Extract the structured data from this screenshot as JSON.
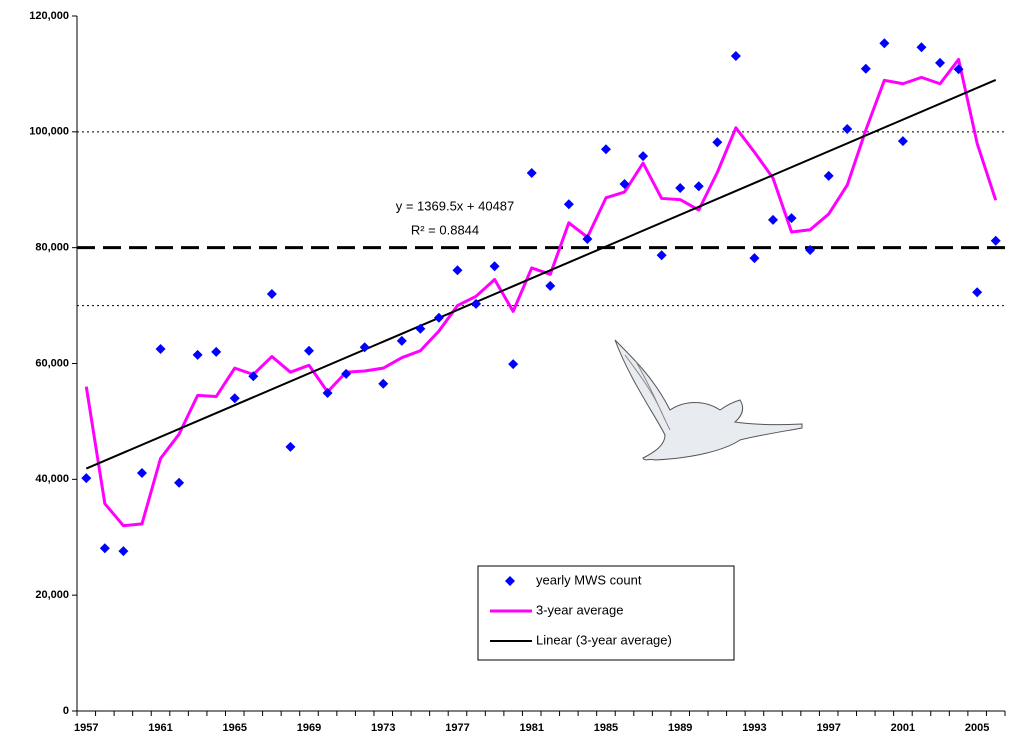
{
  "chart_data": {
    "type": "scatter-line",
    "categories": [
      "1957",
      null,
      null,
      null,
      "1961",
      null,
      null,
      null,
      "1965",
      null,
      null,
      null,
      "1969",
      null,
      null,
      null,
      "1973",
      null,
      null,
      null,
      "1977",
      null,
      null,
      null,
      "1981",
      null,
      null,
      null,
      "1985",
      null,
      null,
      null,
      "1989",
      null,
      null,
      null,
      "1993",
      null,
      null,
      null,
      "1997",
      null,
      null,
      null,
      "2001",
      null,
      null,
      null,
      "2005",
      null
    ],
    "series": [
      {
        "name": "yearly MWS count",
        "kind": "marker",
        "color": "#0000ff",
        "values": [
          40200,
          28100,
          27600,
          41100,
          62500,
          39400,
          61500,
          62000,
          54000,
          57800,
          72000,
          45600,
          62200,
          54900,
          58200,
          62800,
          56500,
          63900,
          66000,
          67900,
          76100,
          70300,
          76800,
          59900,
          92900,
          73400,
          87500,
          81500,
          97000,
          91000,
          95800,
          78700,
          90300,
          90600,
          98200,
          113100,
          78200,
          84800,
          85100,
          79600,
          92400,
          100500,
          110900,
          115300,
          98400,
          114600,
          111900,
          110800,
          72300,
          81200
        ]
      },
      {
        "name": "3-year average",
        "kind": "line",
        "color": "#ff00ff",
        "values": [
          56000,
          35800,
          32000,
          32300,
          43600,
          47800,
          54500,
          54300,
          59200,
          58100,
          61200,
          58500,
          59700,
          55100,
          58500,
          58700,
          59200,
          61000,
          62200,
          65600,
          70000,
          71600,
          74500,
          69000,
          76500,
          75400,
          84300,
          81800,
          88600,
          89600,
          94600,
          88500,
          88300,
          86500,
          93000,
          100700,
          96500,
          92000,
          82700,
          83100,
          85800,
          90800,
          100300,
          108900,
          108300,
          109400,
          108300,
          112500,
          98000,
          88200
        ]
      },
      {
        "name": "Linear (3-year average)",
        "kind": "trend",
        "color": "#000000",
        "x": [
          1957,
          2006
        ],
        "values": [
          41856,
          108962
        ]
      }
    ],
    "reference_lines": [
      {
        "value": 80000,
        "style": "dashed"
      },
      {
        "value": 100000,
        "style": "dotted"
      },
      {
        "value": 70000,
        "style": "dotted"
      }
    ],
    "equation": "y = 1369.5x + 40487",
    "r_squared": "R² = 0.8844",
    "ylim": [
      0,
      120000
    ],
    "yticks": [
      0,
      {
        "value": 20000,
        "label": "20,000"
      },
      {
        "value": 40000,
        "label": "40,000"
      },
      {
        "value": 60000,
        "label": "60,000"
      },
      {
        "value": 80000,
        "label": "80,000"
      },
      {
        "value": 100000,
        "label": "100,000"
      },
      {
        "value": 120000,
        "label": "120,000"
      }
    ],
    "grid": false
  }
}
